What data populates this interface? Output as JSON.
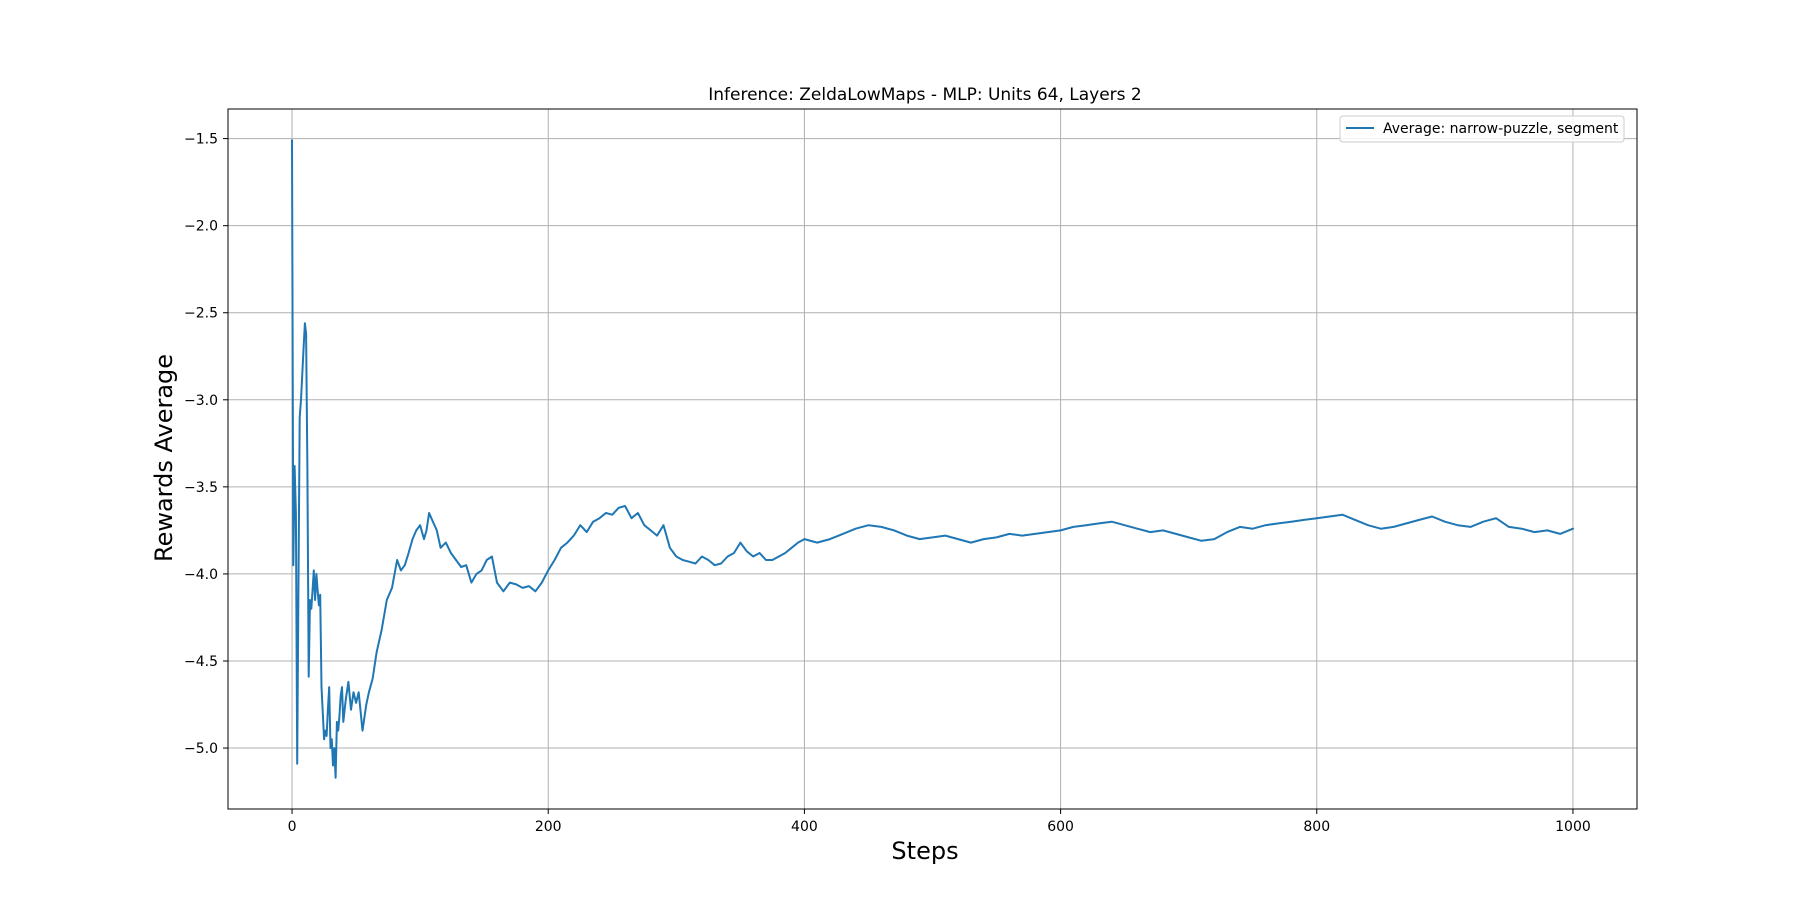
{
  "chart_data": {
    "type": "line",
    "title": "Inference: ZeldaLowMaps - MLP: Units 64, Layers 2",
    "xlabel": "Steps",
    "ylabel": "Rewards Average",
    "xlim": [
      -50,
      1050
    ],
    "ylim": [
      -5.35,
      -1.33
    ],
    "xticks": [
      0,
      200,
      400,
      600,
      800,
      1000
    ],
    "xtick_labels": [
      "0",
      "200",
      "400",
      "600",
      "800",
      "1000"
    ],
    "yticks": [
      -1.5,
      -2.0,
      -2.5,
      -3.0,
      -3.5,
      -4.0,
      -4.5,
      -5.0
    ],
    "ytick_labels": [
      "−1.5",
      "−2.0",
      "−2.5",
      "−3.0",
      "−3.5",
      "−4.0",
      "−4.5",
      "−5.0"
    ],
    "grid": true,
    "legend_position": "top-right",
    "series": [
      {
        "name": "Average: narrow-puzzle, segment",
        "color": "#1f77b4",
        "x": [
          0,
          1,
          2,
          3,
          4,
          5,
          6,
          7,
          8,
          9,
          10,
          11,
          12,
          13,
          14,
          15,
          16,
          17,
          18,
          19,
          20,
          21,
          22,
          23,
          24,
          25,
          26,
          27,
          28,
          29,
          30,
          31,
          32,
          33,
          34,
          35,
          36,
          37,
          38,
          39,
          40,
          42,
          44,
          46,
          48,
          50,
          52,
          55,
          58,
          60,
          63,
          66,
          70,
          74,
          78,
          82,
          85,
          88,
          91,
          94,
          97,
          100,
          103,
          105,
          107,
          110,
          113,
          116,
          120,
          124,
          128,
          132,
          136,
          140,
          144,
          148,
          152,
          156,
          160,
          165,
          170,
          175,
          180,
          185,
          190,
          195,
          200,
          205,
          210,
          215,
          220,
          225,
          230,
          235,
          240,
          245,
          250,
          255,
          260,
          265,
          270,
          275,
          280,
          285,
          290,
          295,
          300,
          305,
          310,
          315,
          320,
          325,
          330,
          335,
          340,
          345,
          350,
          355,
          360,
          365,
          370,
          375,
          380,
          385,
          390,
          395,
          400,
          410,
          420,
          430,
          440,
          450,
          460,
          470,
          480,
          490,
          500,
          510,
          520,
          530,
          540,
          550,
          560,
          570,
          580,
          590,
          600,
          610,
          620,
          630,
          640,
          650,
          660,
          670,
          680,
          690,
          700,
          710,
          720,
          730,
          740,
          750,
          760,
          770,
          780,
          790,
          800,
          810,
          820,
          830,
          840,
          850,
          860,
          870,
          880,
          890,
          900,
          910,
          920,
          930,
          940,
          950,
          960,
          970,
          980,
          990,
          1000
        ],
        "y": [
          -1.51,
          -3.95,
          -3.38,
          -3.65,
          -5.09,
          -4.1,
          -3.1,
          -3.0,
          -2.85,
          -2.7,
          -2.56,
          -2.62,
          -3.4,
          -4.59,
          -4.15,
          -4.2,
          -4.1,
          -3.98,
          -4.15,
          -4.0,
          -4.1,
          -4.18,
          -4.12,
          -4.65,
          -4.8,
          -4.95,
          -4.9,
          -4.93,
          -4.78,
          -4.65,
          -5.0,
          -4.95,
          -5.1,
          -5.0,
          -5.17,
          -4.85,
          -4.9,
          -4.82,
          -4.7,
          -4.65,
          -4.85,
          -4.72,
          -4.62,
          -4.78,
          -4.68,
          -4.74,
          -4.68,
          -4.9,
          -4.75,
          -4.68,
          -4.6,
          -4.45,
          -4.32,
          -4.15,
          -4.08,
          -3.92,
          -3.98,
          -3.95,
          -3.88,
          -3.8,
          -3.75,
          -3.72,
          -3.8,
          -3.75,
          -3.65,
          -3.7,
          -3.75,
          -3.85,
          -3.82,
          -3.88,
          -3.92,
          -3.96,
          -3.95,
          -4.05,
          -4.0,
          -3.98,
          -3.92,
          -3.9,
          -4.05,
          -4.1,
          -4.05,
          -4.06,
          -4.08,
          -4.07,
          -4.1,
          -4.05,
          -3.98,
          -3.92,
          -3.85,
          -3.82,
          -3.78,
          -3.72,
          -3.76,
          -3.7,
          -3.68,
          -3.65,
          -3.66,
          -3.62,
          -3.61,
          -3.68,
          -3.65,
          -3.72,
          -3.75,
          -3.78,
          -3.72,
          -3.85,
          -3.9,
          -3.92,
          -3.93,
          -3.94,
          -3.9,
          -3.92,
          -3.95,
          -3.94,
          -3.9,
          -3.88,
          -3.82,
          -3.87,
          -3.9,
          -3.88,
          -3.92,
          -3.92,
          -3.9,
          -3.88,
          -3.85,
          -3.82,
          -3.8,
          -3.82,
          -3.8,
          -3.77,
          -3.74,
          -3.72,
          -3.73,
          -3.75,
          -3.78,
          -3.8,
          -3.79,
          -3.78,
          -3.8,
          -3.82,
          -3.8,
          -3.79,
          -3.77,
          -3.78,
          -3.77,
          -3.76,
          -3.75,
          -3.73,
          -3.72,
          -3.71,
          -3.7,
          -3.72,
          -3.74,
          -3.76,
          -3.75,
          -3.77,
          -3.79,
          -3.81,
          -3.8,
          -3.76,
          -3.73,
          -3.74,
          -3.72,
          -3.71,
          -3.7,
          -3.69,
          -3.68,
          -3.67,
          -3.66,
          -3.69,
          -3.72,
          -3.74,
          -3.73,
          -3.71,
          -3.69,
          -3.67,
          -3.7,
          -3.72,
          -3.73,
          -3.7,
          -3.68,
          -3.73,
          -3.74,
          -3.76,
          -3.75,
          -3.77,
          -3.74
        ]
      }
    ]
  }
}
